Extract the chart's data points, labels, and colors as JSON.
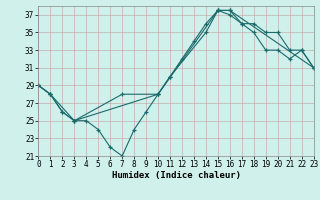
{
  "xlabel": "Humidex (Indice chaleur)",
  "xlim": [
    0,
    23
  ],
  "ylim": [
    21,
    38
  ],
  "yticks": [
    21,
    23,
    25,
    27,
    29,
    31,
    33,
    35,
    37
  ],
  "xticks": [
    0,
    1,
    2,
    3,
    4,
    5,
    6,
    7,
    8,
    9,
    10,
    11,
    12,
    13,
    14,
    15,
    16,
    17,
    18,
    19,
    20,
    21,
    22,
    23
  ],
  "bg_color": "#cff0eb",
  "line_color": "#1a6b6b",
  "series1_x": [
    0,
    1,
    2,
    3,
    4,
    5,
    6,
    7,
    8,
    9,
    10,
    11,
    12,
    13,
    14,
    15,
    16,
    17,
    18,
    19,
    20,
    21,
    22,
    23
  ],
  "series1_y": [
    29,
    28,
    26,
    25,
    25,
    24,
    22,
    21,
    24,
    26,
    28,
    30,
    32,
    34,
    36,
    37.5,
    37.5,
    36,
    35,
    33,
    33,
    32,
    33,
    31
  ],
  "series2_x": [
    0,
    1,
    3,
    7,
    10,
    15,
    16,
    23
  ],
  "series2_y": [
    29,
    28,
    25,
    28,
    28,
    37.5,
    37.5,
    31
  ],
  "series3_x": [
    0,
    1,
    2,
    3,
    10,
    11,
    14,
    15,
    16,
    17,
    18,
    19,
    20,
    21,
    22,
    23
  ],
  "series3_y": [
    29,
    28,
    26,
    25,
    28,
    30,
    35,
    37.5,
    37,
    36,
    36,
    35,
    35,
    33,
    33,
    31
  ],
  "xlabel_fontsize": 6.5,
  "tick_fontsize": 5.5
}
